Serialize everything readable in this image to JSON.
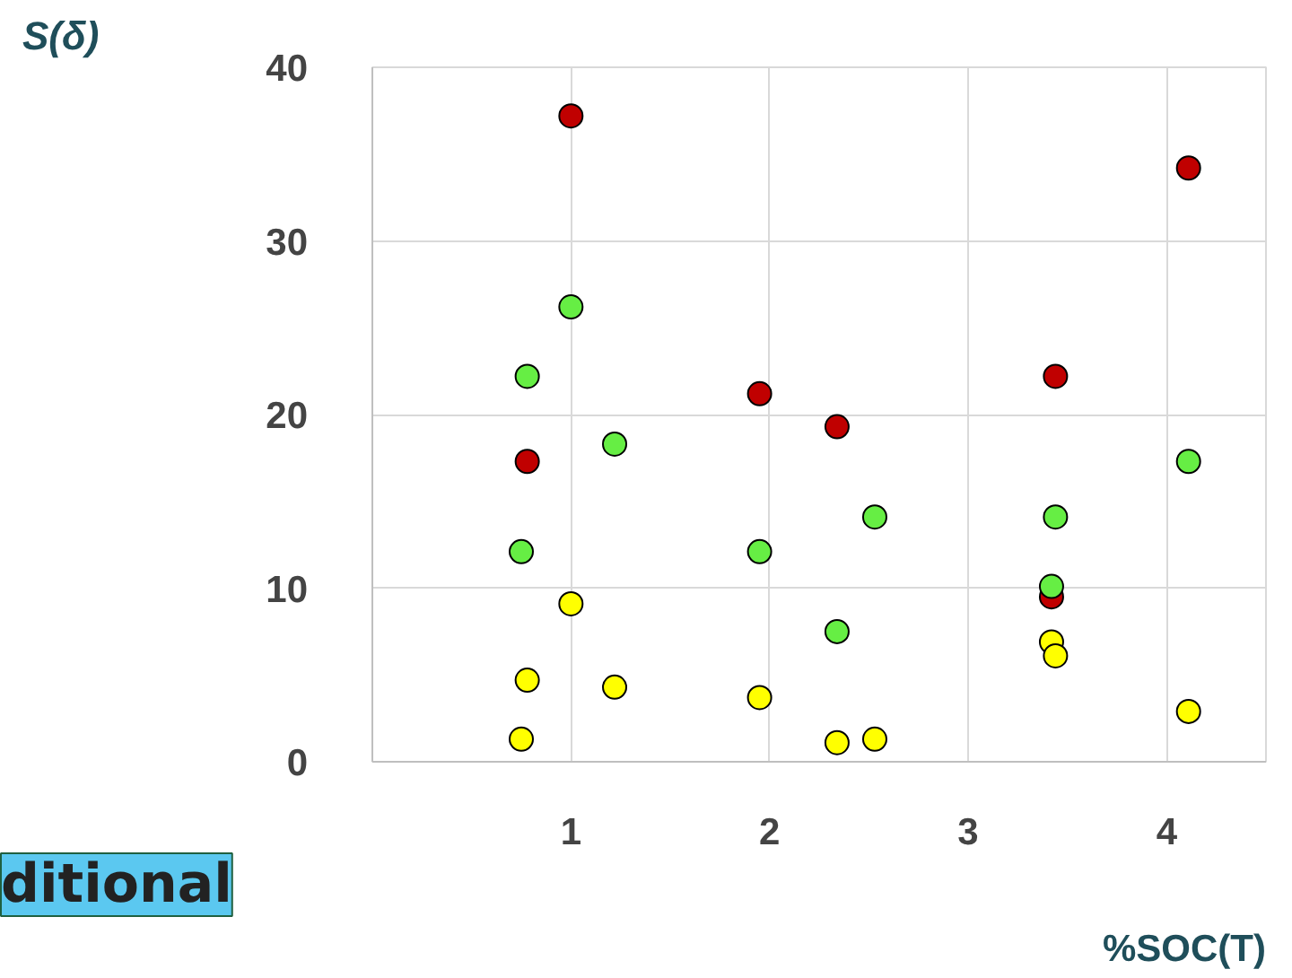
{
  "chart_data": {
    "type": "scatter",
    "xlabel": "%SOC(T)",
    "ylabel": "S(δ)",
    "annotations": [
      "ditional"
    ],
    "xlim": [
      0,
      4.5
    ],
    "ylim": [
      0,
      40
    ],
    "xticks": [
      1,
      2,
      3,
      4
    ],
    "yticks": [
      0,
      10,
      20,
      30,
      40
    ],
    "grid": true,
    "marker": "circle",
    "series": [
      {
        "color": "#c00000",
        "x": [
          1.0,
          0.78,
          1.95,
          2.34,
          3.44,
          3.42,
          4.11
        ],
        "values": [
          37.2,
          17.3,
          21.2,
          19.3,
          22.2,
          9.5,
          34.2
        ]
      },
      {
        "color": "#66ee44",
        "x": [
          1.0,
          0.78,
          1.22,
          0.75,
          1.95,
          2.34,
          2.53,
          3.44,
          3.42,
          4.11
        ],
        "values": [
          26.2,
          22.2,
          18.3,
          12.1,
          12.1,
          7.5,
          14.1,
          14.1,
          10.1,
          17.3
        ]
      },
      {
        "color": "#ffff00",
        "x": [
          1.0,
          0.78,
          1.22,
          0.75,
          1.95,
          2.34,
          2.53,
          3.42,
          3.44,
          4.11
        ],
        "values": [
          9.1,
          4.7,
          4.3,
          1.3,
          3.7,
          1.1,
          1.3,
          6.9,
          6.1,
          2.9
        ]
      }
    ]
  }
}
